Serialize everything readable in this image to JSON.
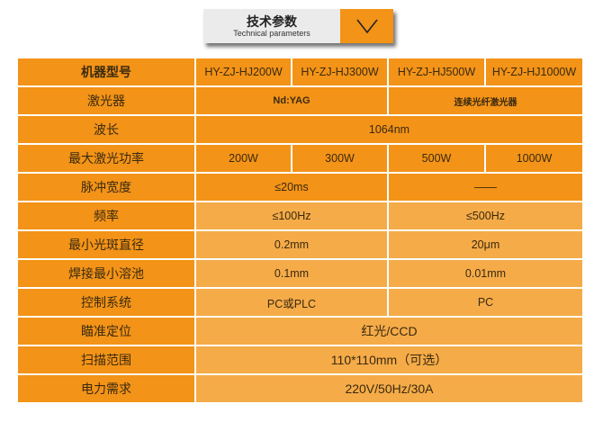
{
  "header": {
    "title": "技术参数",
    "subtitle": "Technical parameters",
    "icon": "chevron-down-icon"
  },
  "colors": {
    "dark": "#F39317",
    "light": "#F5AB48"
  },
  "table": {
    "model_label": "机器型号",
    "models": [
      "HY-ZJ-HJ200W",
      "HY-ZJ-HJ300W",
      "HY-ZJ-HJ500W",
      "HY-ZJ-HJ1000W"
    ],
    "rows": [
      {
        "label": "激光器",
        "values": [
          "Nd:YAG",
          "连续光纤激光器"
        ]
      },
      {
        "label": "波长",
        "values": [
          "1064nm"
        ]
      },
      {
        "label": "最大激光功率",
        "values": [
          "200W",
          "300W",
          "500W",
          "1000W"
        ]
      },
      {
        "label": "脉冲宽度",
        "values": [
          "≤20ms",
          "——"
        ]
      },
      {
        "label": "频率",
        "values": [
          "≤100Hz",
          "≤500Hz"
        ]
      },
      {
        "label": "最小光斑直径",
        "values": [
          "0.2mm",
          "20μm"
        ]
      },
      {
        "label": "焊接最小溶池",
        "values": [
          "0.1mm",
          "0.01mm"
        ]
      },
      {
        "label": "控制系统",
        "values": [
          "PC或PLC",
          "PC"
        ]
      },
      {
        "label": "瞄准定位",
        "values": [
          "红光/CCD"
        ]
      },
      {
        "label": "扫描范围",
        "values": [
          "110*110mm（可选）"
        ]
      },
      {
        "label": "电力需求",
        "values": [
          "220V/50Hz/30A"
        ]
      }
    ]
  }
}
